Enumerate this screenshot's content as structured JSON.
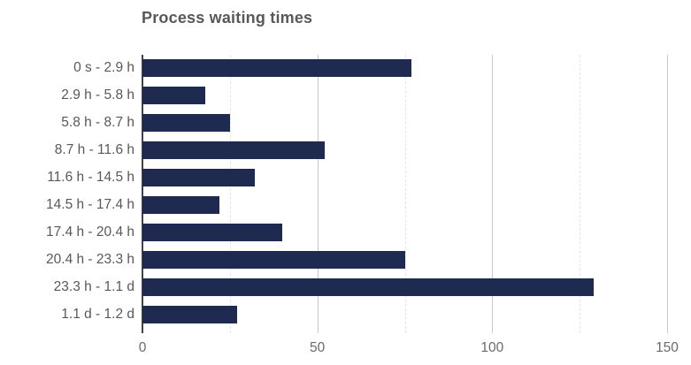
{
  "chart": {
    "title": "Process waiting times"
  },
  "colors": {
    "bar": "#1f2a50",
    "title_text": "#58585a",
    "category_label_text": "#58585a",
    "axis_label_text": "#6a6a6a",
    "axis_line": "#424242",
    "major_gridline": "#c9c9c9",
    "minor_gridline": "#e3e3e3",
    "background": "#ffffff"
  },
  "chart_data": {
    "type": "bar",
    "orientation": "horizontal",
    "title": "Process waiting times",
    "categories": [
      "0 s - 2.9 h",
      "2.9 h - 5.8 h",
      "5.8 h - 8.7 h",
      "8.7 h - 11.6 h",
      "11.6 h - 14.5 h",
      "14.5 h - 17.4 h",
      "17.4 h - 20.4 h",
      "20.4 h - 23.3 h",
      "23.3 h - 1.1 d",
      "1.1 d - 1.2 d"
    ],
    "values": [
      77,
      18,
      25,
      52,
      32,
      22,
      40,
      75,
      129,
      27
    ],
    "xlabel": "",
    "ylabel": "",
    "xlim": [
      0,
      155
    ],
    "x_ticks": [
      0,
      50,
      100,
      150
    ],
    "x_minor_ticks": [
      25,
      75,
      125
    ],
    "grid": true,
    "legend_position": "none"
  }
}
